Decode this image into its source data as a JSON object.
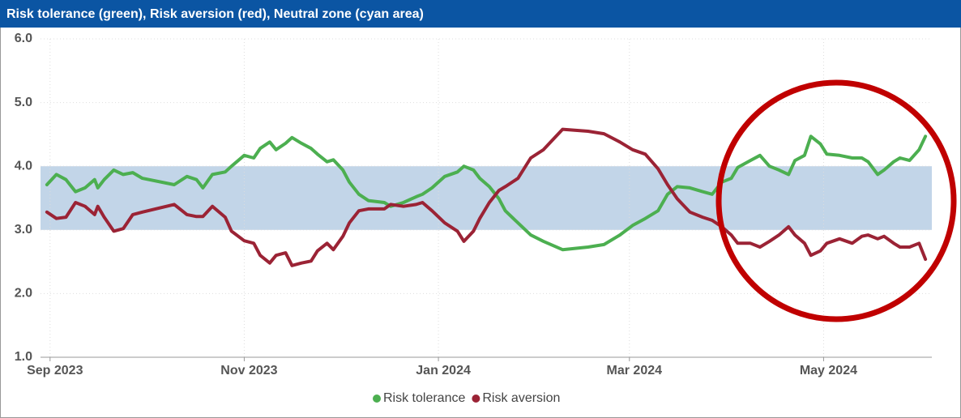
{
  "chart_data": {
    "type": "line",
    "title": "Risk tolerance (green), Risk aversion (red), Neutral zone (cyan area)",
    "x": [
      -1,
      2,
      5,
      8,
      11,
      14,
      15,
      17,
      20,
      23,
      26,
      29,
      39,
      43,
      46,
      48,
      51,
      55,
      57,
      61,
      64,
      66,
      69,
      71,
      74,
      76,
      79,
      82,
      84,
      87,
      89,
      92,
      94,
      97,
      100,
      105,
      107,
      111,
      115,
      117,
      120,
      124,
      128,
      130,
      133,
      135,
      138,
      141,
      143,
      147,
      151,
      155,
      161,
      169,
      174,
      179,
      183,
      187,
      191,
      194,
      197,
      201,
      205,
      208,
      211,
      214,
      216,
      220,
      223,
      226,
      229,
      232,
      234,
      237,
      239,
      242,
      244,
      248,
      252,
      255,
      257,
      260,
      262,
      265,
      267,
      270,
      273,
      275
    ],
    "series": [
      {
        "name": "Risk tolerance",
        "color": "#4caf50",
        "values": [
          3.71,
          3.87,
          3.79,
          3.6,
          3.66,
          3.79,
          3.66,
          3.79,
          3.94,
          3.87,
          3.9,
          3.81,
          3.71,
          3.84,
          3.79,
          3.66,
          3.87,
          3.91,
          4.0,
          4.17,
          4.13,
          4.28,
          4.38,
          4.26,
          4.36,
          4.45,
          4.36,
          4.28,
          4.19,
          4.07,
          4.1,
          3.94,
          3.75,
          3.56,
          3.46,
          3.43,
          3.37,
          3.43,
          3.52,
          3.56,
          3.66,
          3.84,
          3.91,
          4.0,
          3.94,
          3.81,
          3.68,
          3.49,
          3.3,
          3.11,
          2.92,
          2.82,
          2.69,
          2.73,
          2.77,
          2.92,
          3.07,
          3.18,
          3.3,
          3.56,
          3.68,
          3.66,
          3.6,
          3.56,
          3.75,
          3.81,
          3.98,
          4.09,
          4.17,
          4.0,
          3.94,
          3.87,
          4.09,
          4.17,
          4.47,
          4.35,
          4.19,
          4.17,
          4.13,
          4.13,
          4.07,
          3.87,
          3.94,
          4.07,
          4.13,
          4.09,
          4.26,
          4.47
        ]
      },
      {
        "name": "Risk aversion",
        "color": "#9b2335",
        "values": [
          3.28,
          3.18,
          3.2,
          3.43,
          3.37,
          3.24,
          3.37,
          3.2,
          2.98,
          3.02,
          3.24,
          3.28,
          3.4,
          3.24,
          3.21,
          3.21,
          3.37,
          3.2,
          2.98,
          2.83,
          2.79,
          2.6,
          2.48,
          2.6,
          2.64,
          2.44,
          2.48,
          2.51,
          2.67,
          2.79,
          2.69,
          2.9,
          3.11,
          3.3,
          3.33,
          3.33,
          3.4,
          3.37,
          3.4,
          3.43,
          3.3,
          3.11,
          2.98,
          2.82,
          2.98,
          3.18,
          3.43,
          3.62,
          3.68,
          3.81,
          4.13,
          4.26,
          4.58,
          4.55,
          4.51,
          4.38,
          4.26,
          4.19,
          3.96,
          3.71,
          3.49,
          3.28,
          3.2,
          3.15,
          3.05,
          2.92,
          2.79,
          2.79,
          2.73,
          2.82,
          2.92,
          3.05,
          2.92,
          2.79,
          2.6,
          2.67,
          2.79,
          2.86,
          2.79,
          2.9,
          2.92,
          2.86,
          2.9,
          2.79,
          2.73,
          2.73,
          2.79,
          2.54
        ]
      }
    ],
    "neutral_zone": {
      "from": 3,
      "to": 4,
      "color": "#c2d5e8"
    },
    "xlim": [
      -3,
      277
    ],
    "xticks": [
      {
        "value": 0,
        "label": "Sep 2023"
      },
      {
        "value": 61,
        "label": "Nov 2023"
      },
      {
        "value": 122,
        "label": "Jan 2024"
      },
      {
        "value": 182,
        "label": "Mar 2024"
      },
      {
        "value": 243,
        "label": "May 2024"
      }
    ],
    "ylim": [
      1,
      6
    ],
    "yticks": [
      {
        "value": 1,
        "label": "1.0"
      },
      {
        "value": 2,
        "label": "2.0"
      },
      {
        "value": 3,
        "label": "3.0"
      },
      {
        "value": 4,
        "label": "4.0"
      },
      {
        "value": 5,
        "label": "5.0"
      },
      {
        "value": 6,
        "label": "6.0"
      }
    ],
    "grid": true,
    "legend": "bottom"
  }
}
